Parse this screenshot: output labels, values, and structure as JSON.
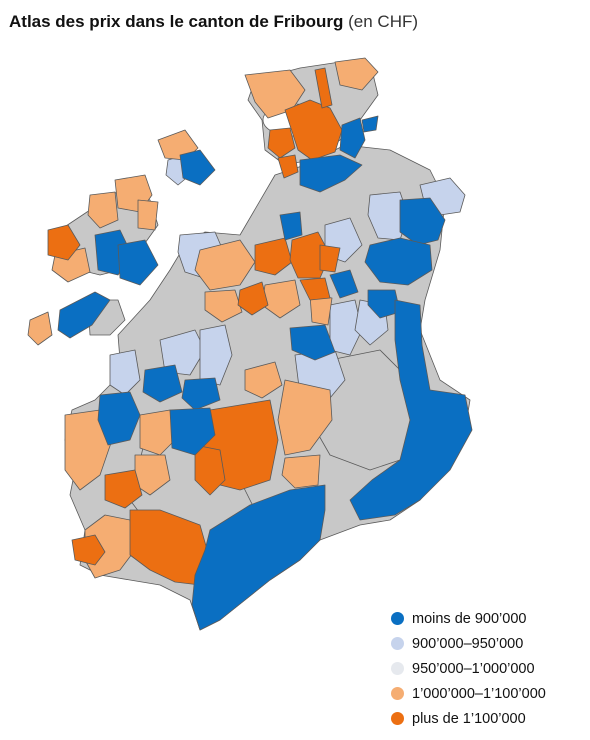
{
  "header": {
    "title": "Atlas des prix dans le canton de Fribourg",
    "unit": "(en CHF)"
  },
  "colors": {
    "cat1": "#0a6fc2",
    "cat2": "#c6d3ec",
    "cat3": "#c8c8c8",
    "cat4": "#f5ad72",
    "cat5": "#ec6f12",
    "border": "#5a5a5a"
  },
  "legend": {
    "items": [
      {
        "label": "moins de 900’000",
        "color": "#0a6fc2"
      },
      {
        "label": "900’000–950’000",
        "color": "#c6d3ec"
      },
      {
        "label": "950’000–1’000’000",
        "color": "#e6e9ee"
      },
      {
        "label": "1’000’000–1’100’000",
        "color": "#f5ad72"
      },
      {
        "label": "plus de 1’100’000",
        "color": "#ec6f12"
      }
    ]
  }
}
